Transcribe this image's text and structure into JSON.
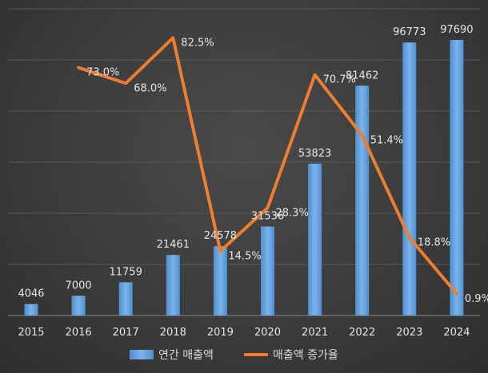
{
  "chart_data": {
    "type": "bar",
    "categories": [
      "2015",
      "2016",
      "2017",
      "2018",
      "2019",
      "2020",
      "2021",
      "2022",
      "2023",
      "2024"
    ],
    "series": [
      {
        "name": "연간 매출액",
        "type": "bar",
        "values": [
          4046,
          7000,
          11759,
          21461,
          24578,
          31536,
          53823,
          81462,
          96773,
          97690
        ],
        "labels": [
          "4046",
          "7000",
          "11759",
          "21461",
          "24578",
          "31536",
          "53823",
          "81462",
          "96773",
          "97690"
        ],
        "color": "#5b9bd5"
      },
      {
        "name": "매출액 증가율",
        "type": "line",
        "values": [
          null,
          73.0,
          68.0,
          82.5,
          14.5,
          28.3,
          70.7,
          51.4,
          18.8,
          0.9
        ],
        "labels": [
          null,
          "73.0%",
          "68.0%",
          "82.5%",
          "14.5%",
          "28.3%",
          "70.7%",
          "51.4%",
          "18.8%",
          "0.9%"
        ],
        "color": "#ed7d31"
      }
    ],
    "grid": true,
    "legend": "bottom"
  }
}
